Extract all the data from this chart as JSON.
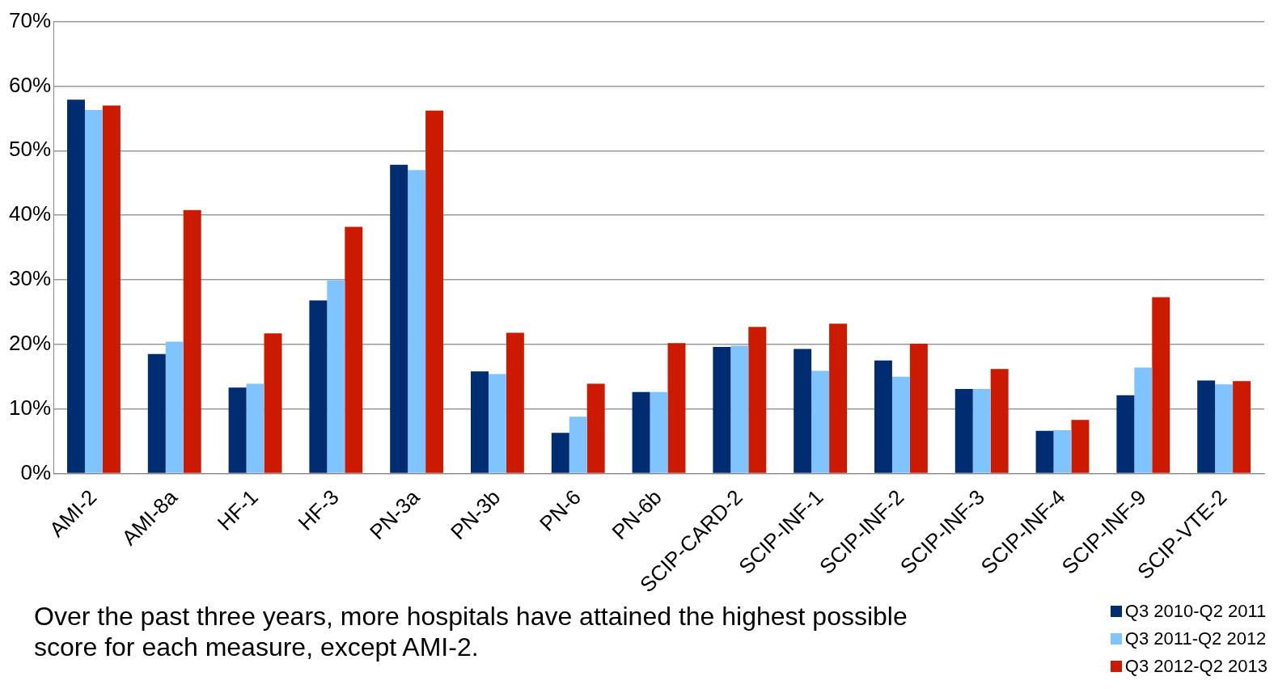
{
  "chart_data": {
    "type": "bar",
    "categories": [
      "AMI-2",
      "AMI-8a",
      "HF-1",
      "HF-3",
      "PN-3a",
      "PN-3b",
      "PN-6",
      "PN-6b",
      "SCIP-CARD-2",
      "SCIP-INF-1",
      "SCIP-INF-2",
      "SCIP-INF-3",
      "SCIP-INF-4",
      "SCIP-INF-9",
      "SCIP-VTE-2"
    ],
    "series": [
      {
        "name": "Q3 2010-Q2 2011",
        "color": "#002d72",
        "values": [
          57.9,
          18.5,
          13.3,
          26.8,
          47.8,
          15.8,
          6.3,
          12.6,
          19.6,
          19.3,
          17.5,
          13.1,
          6.6,
          12.1,
          14.4
        ]
      },
      {
        "name": "Q3 2011-Q2 2012",
        "color": "#80c4ff",
        "values": [
          56.3,
          20.4,
          13.9,
          29.9,
          47.0,
          15.4,
          8.8,
          12.6,
          19.8,
          15.9,
          15.0,
          13.1,
          6.7,
          16.4,
          13.8
        ]
      },
      {
        "name": "Q3 2012-Q2 2013",
        "color": "#cc1a00",
        "values": [
          57.0,
          40.8,
          21.7,
          38.2,
          56.2,
          21.8,
          13.9,
          20.2,
          22.7,
          23.2,
          20.1,
          16.2,
          8.3,
          27.3,
          14.3
        ]
      }
    ],
    "ylim": [
      0,
      70
    ],
    "yticks": [
      {
        "value": 0,
        "label": "0%"
      },
      {
        "value": 10,
        "label": "10%"
      },
      {
        "value": 20,
        "label": "20%"
      },
      {
        "value": 30,
        "label": "30%"
      },
      {
        "value": 40,
        "label": "40%"
      },
      {
        "value": 50,
        "label": "50%"
      },
      {
        "value": 60,
        "label": "60%"
      },
      {
        "value": 70,
        "label": "70%"
      }
    ],
    "grid": "y",
    "legend": "bottom right",
    "annotations": [
      "Over the past three years, more hospitals have attained the highest possible score for each measure, except AMI-2."
    ]
  }
}
